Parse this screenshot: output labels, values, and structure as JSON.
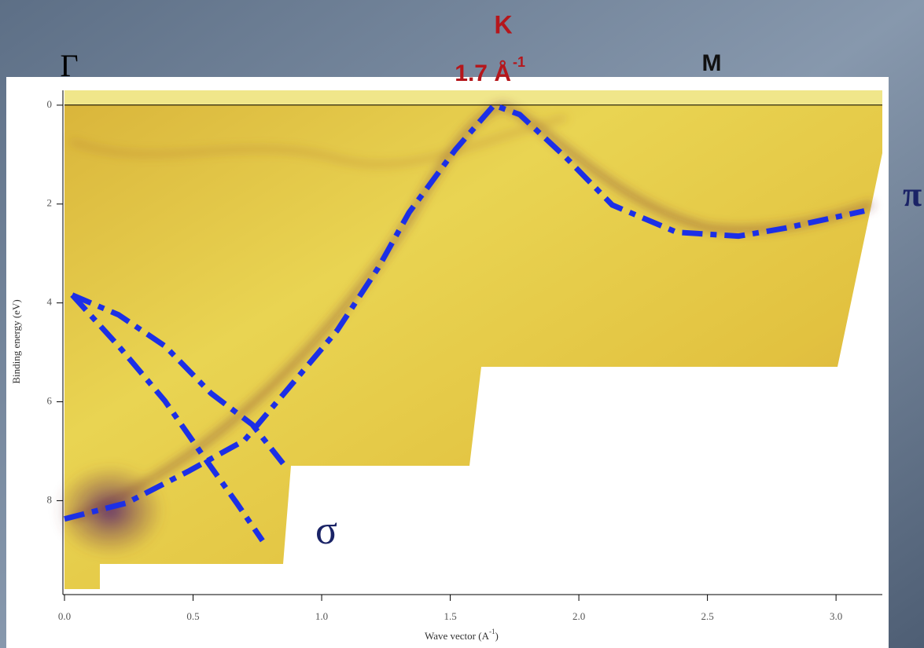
{
  "chart_data": {
    "type": "line",
    "point_labels": {
      "gamma": "Γ",
      "k": "K",
      "k_value": "1.7 Å",
      "k_value_sup": "-1",
      "m": "M"
    },
    "band_labels": {
      "pi": "π",
      "sigma": "σ"
    },
    "y_label": "Binding energy (eV)",
    "x_label": [
      "Wave vector (A",
      "-1",
      ")"
    ],
    "xlim": [
      0,
      3.18
    ],
    "ylim": [
      -0.3,
      9.9
    ],
    "y_inverted": true,
    "xticks": [
      {
        "value": 0,
        "label": "0.0"
      },
      0.5,
      {
        "value": 1,
        "label": "1.0"
      },
      1.5,
      {
        "value": 2,
        "label": "2.0"
      },
      2.5,
      {
        "value": 3,
        "label": "3.0"
      }
    ],
    "yticks": [
      0,
      2,
      4,
      6,
      8
    ],
    "dash": "dash-dot",
    "series": [
      {
        "color": "#1c2fe6",
        "x": [
          0,
          0.24,
          0.48,
          0.7,
          0.88,
          1.06,
          1.22,
          1.34,
          1.52,
          1.67,
          1.77,
          1.95,
          2.13,
          2.38,
          2.62,
          2.8,
          3.11
        ],
        "values": [
          8.37,
          8.05,
          7.41,
          6.78,
          5.67,
          4.56,
          3.29,
          2.17,
          0.9,
          0,
          0.19,
          1.06,
          2.02,
          2.57,
          2.65,
          2.49,
          2.14
        ]
      },
      {
        "color": "#1c2fe6",
        "x": [
          0.03,
          0.21,
          0.39,
          0.57,
          0.73,
          0.85
        ],
        "values": [
          3.84,
          4.24,
          4.87,
          5.83,
          6.46,
          7.25
        ]
      },
      {
        "color": "#1c2fe6",
        "x": [
          0.03,
          0.21,
          0.39,
          0.54,
          0.67,
          0.77
        ],
        "values": [
          3.84,
          4.87,
          5.98,
          7.1,
          8.05,
          8.81
        ]
      }
    ]
  }
}
